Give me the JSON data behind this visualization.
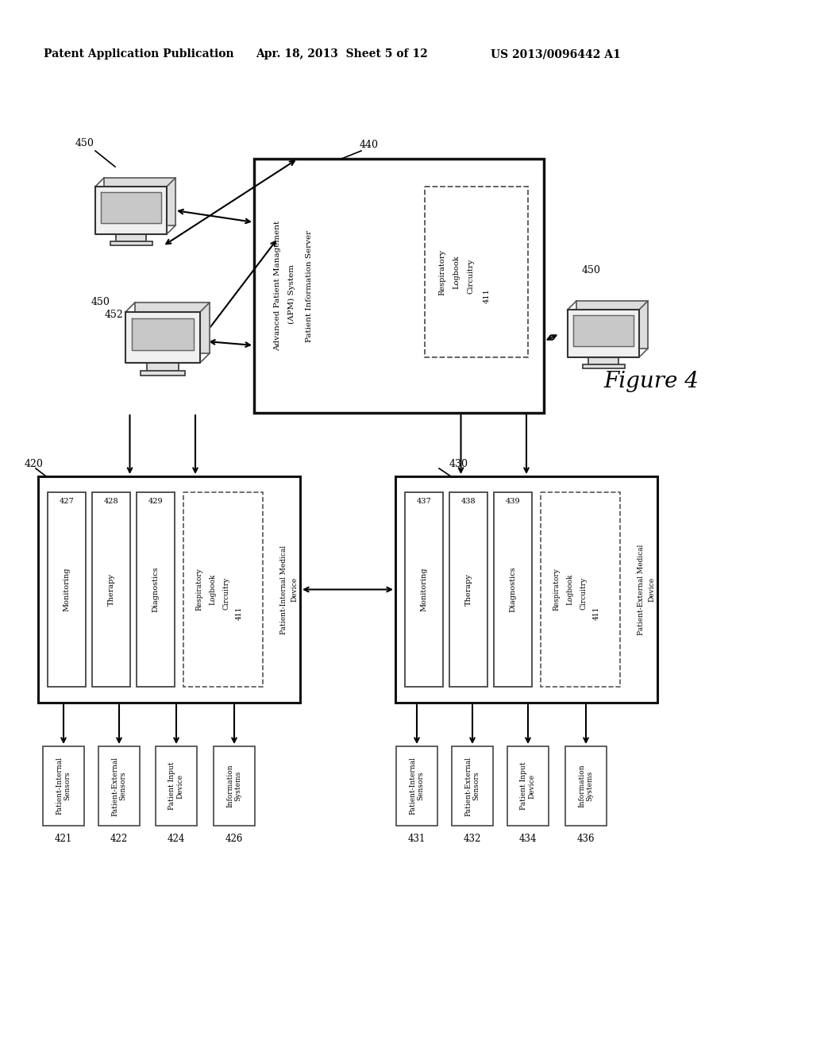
{
  "header_left": "Patent Application Publication",
  "header_mid": "Apr. 18, 2013  Sheet 5 of 12",
  "header_right": "US 2013/0096442 A1",
  "figure_label": "Figure 4",
  "bg_color": "#ffffff"
}
